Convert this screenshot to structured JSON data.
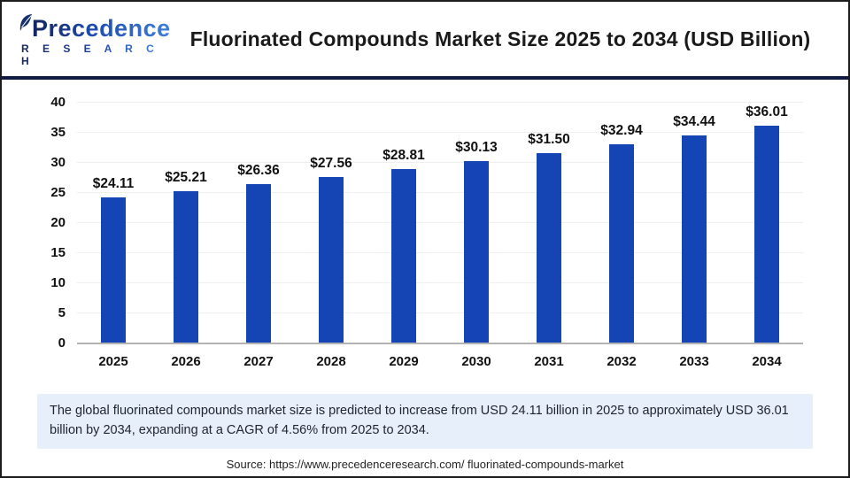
{
  "header": {
    "logo": {
      "name": "Precedence",
      "sub": "R E S E A R C H"
    },
    "title": "Fluorinated Compounds Market Size 2025 to 2034 (USD Billion)"
  },
  "chart_data": {
    "type": "bar",
    "title": "Fluorinated Compounds Market Size 2025 to 2034 (USD Billion)",
    "categories": [
      "2025",
      "2026",
      "2027",
      "2028",
      "2029",
      "2030",
      "2031",
      "2032",
      "2033",
      "2034"
    ],
    "values": [
      24.11,
      25.21,
      26.36,
      27.56,
      28.81,
      30.13,
      31.5,
      32.94,
      34.44,
      36.01
    ],
    "value_labels": [
      "$24.11",
      "$25.21",
      "$26.36",
      "$27.56",
      "$28.81",
      "$30.13",
      "$31.50",
      "$32.94",
      "$34.44",
      "$36.01"
    ],
    "xlabel": "",
    "ylabel": "",
    "ylim": [
      0,
      40
    ],
    "yticks": [
      0,
      5,
      10,
      15,
      20,
      25,
      30,
      35,
      40
    ],
    "grid": true,
    "legend": "none",
    "bar_color": "#1544b5"
  },
  "caption": "The global fluorinated compounds market size is predicted to increase from USD 24.11 billion in 2025 to approximately USD 36.01 billion by 2034, expanding at a CAGR of 4.56% from 2025 to 2034.",
  "source": "Source: https://www.precedenceresearch.com/ fluorinated-compounds-market",
  "colors": {
    "bar": "#1544b5",
    "caption_bg": "#e7f0fa",
    "separator": "#101c42",
    "axis_line": "#b3b3b3",
    "gridline": "#efefef"
  }
}
